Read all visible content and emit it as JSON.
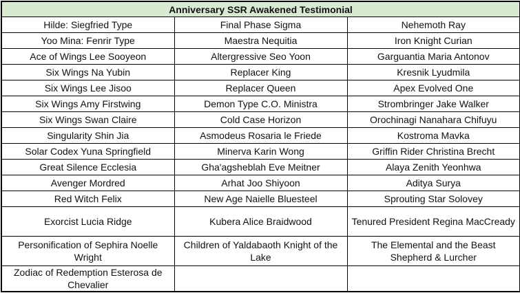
{
  "table": {
    "title": "Anniversary SSR Awakened Testimonial",
    "header_bg": "#d9ead3",
    "rows": [
      [
        "Hilde: Siegfried Type",
        "Final Phase Sigma",
        "Nehemoth Ray"
      ],
      [
        "Yoo Mina: Fenrir Type",
        "Maestra Nequitia",
        "Iron Knight Curian"
      ],
      [
        "Ace of Wings Lee Sooyeon",
        "Altergressive Seo Yoon",
        "Garguantia Maria Antonov"
      ],
      [
        "Six Wings Na Yubin",
        "Replacer King",
        "Kresnik Lyudmila"
      ],
      [
        "Six Wings Lee Jisoo",
        "Replacer Queen",
        "Apex Evolved One"
      ],
      [
        "Six Wings Amy Firstwing",
        "Demon Type C.O. Ministra",
        "Strombringer Jake Walker"
      ],
      [
        "Six Wings Swan Claire",
        "Cold Case Horizon",
        "Orochinagi Nanahara Chifuyu"
      ],
      [
        "Singularity Shin Jia",
        "Asmodeus Rosaria le Friede",
        "Kostroma Mavka"
      ],
      [
        "Solar Codex Yuna Springfield",
        "Minerva Karin Wong",
        "Griffin Rider Christina Brecht"
      ],
      [
        "Great Silence Ecclesia",
        "Gha'agsheblah Eve Meitner",
        "Alaya Zenith Yeonhwa"
      ],
      [
        "Avenger Mordred",
        "Arhat Joo Shiyoon",
        "Aditya Surya"
      ],
      [
        "Red Witch Felix",
        "New Age Naielle Bluesteel",
        "Sprouting Star Solovey"
      ],
      [
        "Exorcist Lucia Ridge",
        "Kubera Alice Braidwood",
        "Tenured President Regina MacCready"
      ],
      [
        "Personification of Sephira Noelle Wright",
        "Children of Yaldabaoth Knight of the Lake",
        "The Elemental and the Beast Shepherd & Lurcher"
      ],
      [
        "Zodiac of Redemption Esterosa de Chevalier",
        "",
        ""
      ]
    ]
  }
}
